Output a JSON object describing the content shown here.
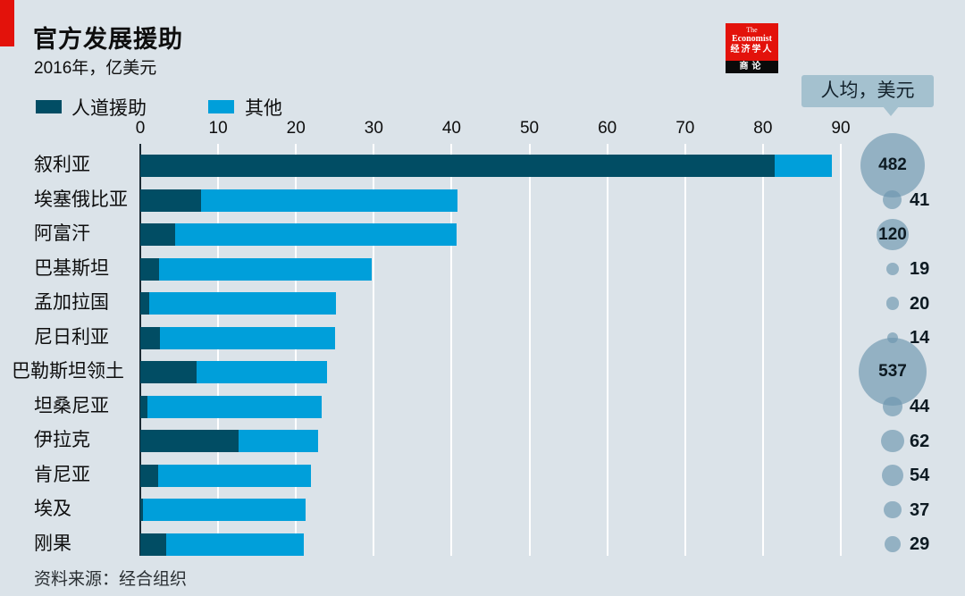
{
  "title": "官方发展援助",
  "subtitle": "2016年，亿美元",
  "logo": {
    "masthead_line1": "The",
    "masthead_line2": "Economist",
    "masthead_cn": "经济学人",
    "band": "商论"
  },
  "legend": {
    "items": [
      {
        "label": "人道援助",
        "color": "#014d64"
      },
      {
        "label": "其他",
        "color": "#009fda"
      }
    ]
  },
  "per_capita_header": "人均，美元",
  "source": "资料来源：经合组织",
  "colors": {
    "background": "#dbe3e9",
    "humanitarian": "#014d64",
    "other": "#009fda",
    "accent_red": "#e3120b",
    "bubble": "rgba(110,150,175,0.66)",
    "tag": "#a4c1cf",
    "gridline": "#ffffff",
    "axis_line": "#1c2a33"
  },
  "chart_data": {
    "type": "bar",
    "orientation": "horizontal",
    "stacked": true,
    "title": "官方发展援助",
    "subtitle": "2016年，亿美元",
    "unit": "亿美元",
    "year": "2016年",
    "categories": [
      "叙利亚",
      "埃塞俄比亚",
      "阿富汗",
      "巴基斯坦",
      "孟加拉国",
      "尼日利亚",
      "巴勒斯坦领土",
      "坦桑尼亚",
      "伊拉克",
      "肯尼亚",
      "埃及",
      "刚果"
    ],
    "series": [
      {
        "name": "人道援助",
        "values": [
          81.5,
          7.8,
          4.5,
          2.4,
          1.2,
          2.5,
          7.2,
          0.9,
          12.6,
          2.3,
          0.4,
          3.3
        ]
      },
      {
        "name": "其他",
        "values": [
          7.3,
          33.0,
          36.1,
          27.3,
          23.9,
          22.5,
          16.8,
          22.4,
          10.2,
          19.6,
          20.8,
          17.7
        ]
      }
    ],
    "totals": [
      88.8,
      40.8,
      40.6,
      29.7,
      25.1,
      25.0,
      24.0,
      23.3,
      22.8,
      21.9,
      21.2,
      21.0
    ],
    "per_capita": {
      "header": "人均，美元",
      "values": [
        482,
        41,
        120,
        19,
        20,
        14,
        537,
        44,
        62,
        54,
        37,
        29
      ]
    },
    "x_ticks": [
      0,
      10,
      20,
      30,
      40,
      50,
      60,
      70,
      80,
      90
    ],
    "xlim": [
      0,
      90
    ],
    "grid": true,
    "legend_position": "top-left",
    "source": "资料来源：经合组织"
  }
}
